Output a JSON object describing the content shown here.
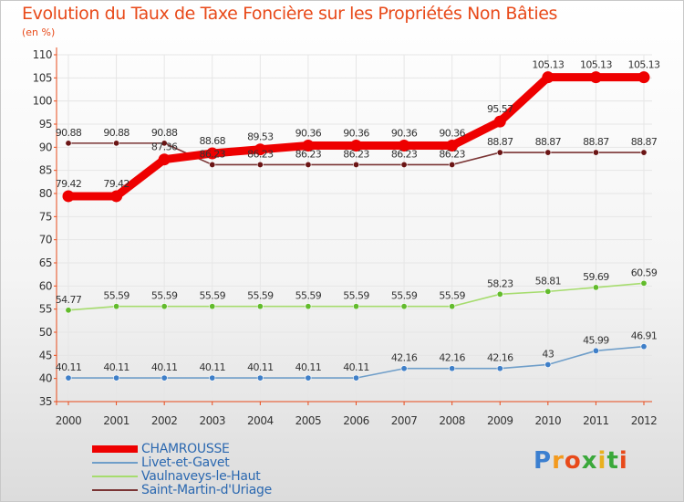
{
  "header": {
    "title": "Evolution du Taux de Taxe Foncière sur les Propriétés Non Bâties",
    "subtitle": "(en %)"
  },
  "brand": {
    "text": "Proxiti",
    "letters": [
      "P",
      "r",
      "o",
      "x",
      "i",
      "t",
      "i"
    ],
    "colors": [
      "#3b7fd0",
      "#f39a1e",
      "#e84a1a",
      "#3aa83a",
      "#e8b01e",
      "#3aa83a",
      "#e84a1a"
    ]
  },
  "colors": {
    "axis": "#e84a1a",
    "grid": "#e6e6e6",
    "tick_text": "#333333"
  },
  "chart_data": {
    "type": "line",
    "title": "Evolution du Taux de Taxe Foncière sur les Propriétés Non Bâties",
    "ylabel": "(en %)",
    "xlabel": "",
    "categories": [
      "2000",
      "2001",
      "2002",
      "2003",
      "2004",
      "2005",
      "2006",
      "2007",
      "2008",
      "2009",
      "2010",
      "2011",
      "2012"
    ],
    "ylim": [
      35,
      110
    ],
    "yticks": [
      35,
      40,
      45,
      50,
      55,
      60,
      65,
      70,
      75,
      80,
      85,
      90,
      95,
      100,
      105,
      110
    ],
    "grid": true,
    "legend_position": "bottom-left",
    "series": [
      {
        "name": "CHAMROUSSE",
        "color": "#ee0000",
        "marker": "#ee0000",
        "emphasis": "thick",
        "values": [
          79.42,
          79.42,
          87.36,
          88.68,
          89.53,
          90.36,
          90.36,
          90.36,
          90.36,
          95.57,
          105.13,
          105.13,
          105.13
        ],
        "labels": [
          "79.42",
          "79.42",
          "87.36",
          "88.68",
          "89.53",
          "90.36",
          "90.36",
          "90.36",
          "90.36",
          "95.57",
          "105.13",
          "105.13",
          "105.13"
        ]
      },
      {
        "name": "Livet-et-Gavet",
        "color": "#6f9ec9",
        "marker": "#3f7fc8",
        "emphasis": "thin",
        "values": [
          40.11,
          40.11,
          40.11,
          40.11,
          40.11,
          40.11,
          40.11,
          42.16,
          42.16,
          42.16,
          43,
          45.99,
          46.91
        ],
        "labels": [
          "40.11",
          "40.11",
          "40.11",
          "40.11",
          "40.11",
          "40.11",
          "40.11",
          "42.16",
          "42.16",
          "42.16",
          "43",
          "45.99",
          "46.91"
        ]
      },
      {
        "name": "Vaulnaveys-le-Haut",
        "color": "#a6dc6e",
        "marker": "#62bb2c",
        "emphasis": "thin",
        "values": [
          54.77,
          55.59,
          55.59,
          55.59,
          55.59,
          55.59,
          55.59,
          55.59,
          55.59,
          58.23,
          58.81,
          59.69,
          60.59
        ],
        "labels": [
          "54.77",
          "55.59",
          "55.59",
          "55.59",
          "55.59",
          "55.59",
          "55.59",
          "55.59",
          "55.59",
          "58.23",
          "58.81",
          "59.69",
          "60.59"
        ]
      },
      {
        "name": "Saint-Martin-d'Uriage",
        "color": "#7a3434",
        "marker": "#6b1515",
        "emphasis": "thin",
        "values": [
          90.88,
          90.88,
          90.88,
          86.23,
          86.23,
          86.23,
          86.23,
          86.23,
          86.23,
          88.87,
          88.87,
          88.87,
          88.87
        ],
        "labels": [
          "90.88",
          "90.88",
          "90.88",
          "86.23",
          "86.23",
          "86.23",
          "86.23",
          "86.23",
          "86.23",
          "88.87",
          "88.87",
          "88.87",
          "88.87"
        ]
      }
    ]
  }
}
